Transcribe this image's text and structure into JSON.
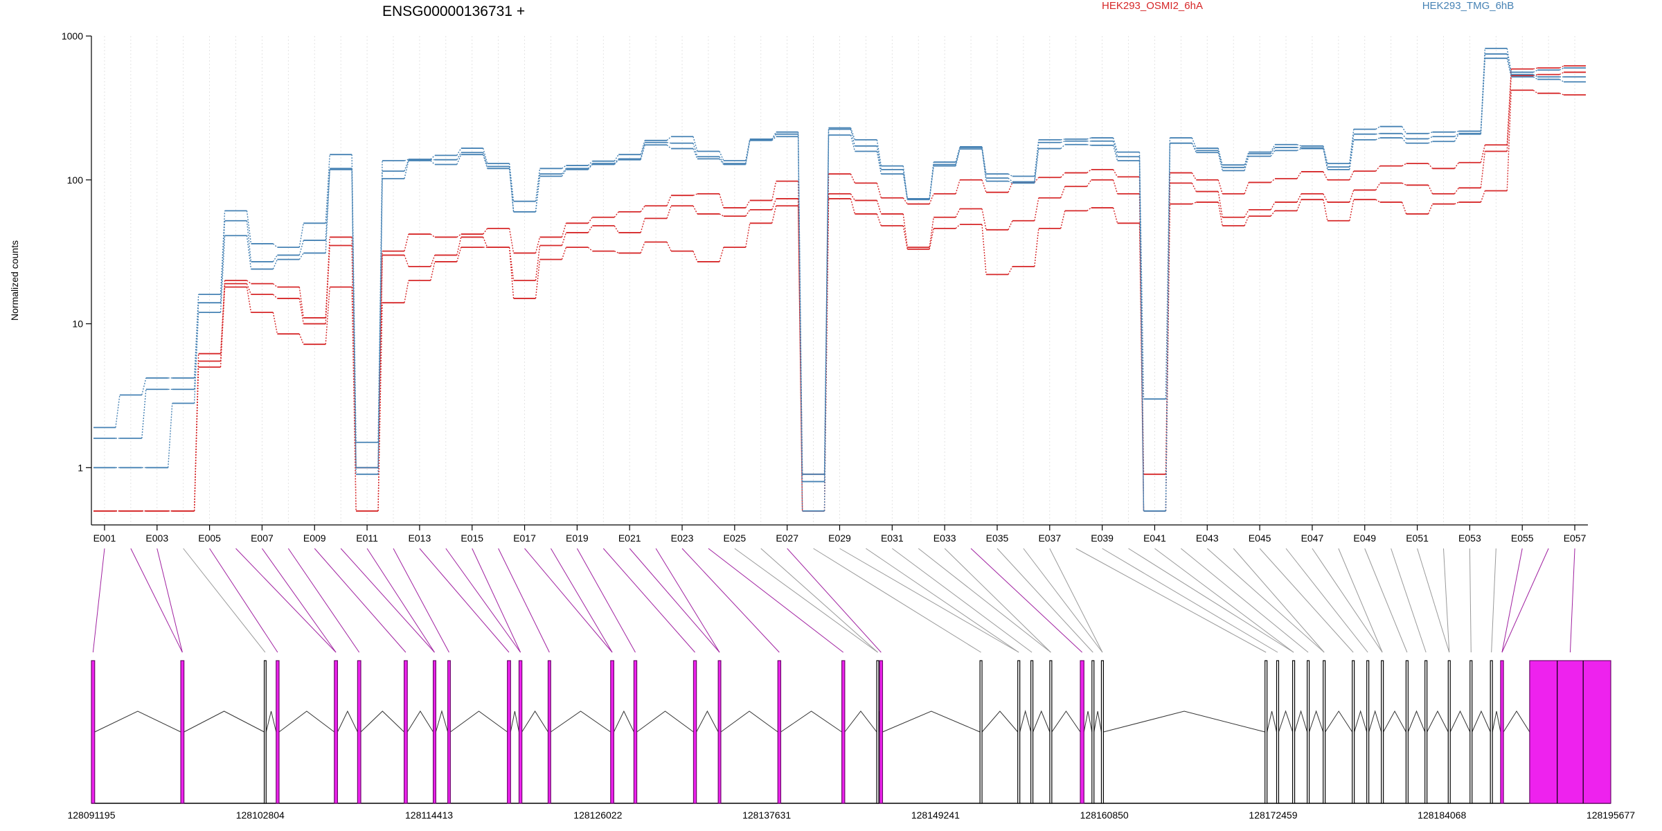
{
  "chart_data": {
    "type": "line",
    "title": "ENSG00000136731 +",
    "ylabel": "Normalized counts",
    "xlabel": "",
    "yscale": "log",
    "ylim": [
      0.4,
      1000
    ],
    "y_ticks": [
      1,
      10,
      100,
      1000
    ],
    "y_tick_labels": [
      "1",
      "10",
      "100",
      "1000"
    ],
    "x_tick_labels": [
      "E001",
      "E003",
      "E005",
      "E007",
      "E009",
      "E011",
      "E013",
      "E015",
      "E017",
      "E019",
      "E021",
      "E023",
      "E025",
      "E027",
      "E029",
      "E031",
      "E033",
      "E035",
      "E037",
      "E039",
      "E041",
      "E043",
      "E045",
      "E047",
      "E049",
      "E051",
      "E053",
      "E055",
      "E057"
    ],
    "exons": [
      "E001",
      "E002",
      "E003",
      "E004",
      "E005",
      "E006",
      "E007",
      "E008",
      "E009",
      "E010",
      "E011",
      "E012",
      "E013",
      "E014",
      "E015",
      "E016",
      "E017",
      "E018",
      "E019",
      "E020",
      "E021",
      "E022",
      "E023",
      "E024",
      "E025",
      "E026",
      "E027",
      "E028",
      "E029",
      "E030",
      "E031",
      "E032",
      "E033",
      "E034",
      "E035",
      "E036",
      "E037",
      "E038",
      "E039",
      "E040",
      "E041",
      "E042",
      "E043",
      "E044",
      "E045",
      "E046",
      "E047",
      "E048",
      "E049",
      "E050",
      "E051",
      "E052",
      "E053",
      "E054",
      "E055",
      "E056",
      "E057"
    ],
    "legend_placement": "top",
    "grid": true,
    "colors": {
      "OSMI2": "#d62728",
      "TMG": "#4682b4",
      "exon_fill": "#ee22ee",
      "structure": "#333333"
    },
    "series": [
      {
        "name": "HEK293_OSMI2_6hA",
        "group": "OSMI2",
        "values": [
          0.5,
          0.5,
          0.5,
          0.5,
          6.2,
          20,
          19,
          18,
          11,
          40,
          1.0,
          32,
          42,
          40,
          42,
          46,
          31,
          40,
          50,
          55,
          60,
          66,
          78,
          80,
          64,
          72,
          98,
          0.9,
          110,
          95,
          75,
          68,
          80,
          100,
          82,
          96,
          104,
          112,
          118,
          105,
          0.9,
          112,
          100,
          80,
          96,
          102,
          114,
          100,
          115,
          125,
          130,
          120,
          132,
          175,
          590,
          600,
          620
        ]
      },
      {
        "name": "HEK293_OSMI2_6hA",
        "group": "OSMI2",
        "values": [
          0.5,
          0.5,
          0.5,
          0.5,
          5.5,
          19,
          16,
          15,
          10,
          35,
          0.5,
          30,
          25,
          30,
          40,
          34,
          20,
          35,
          43,
          48,
          43,
          54,
          66,
          58,
          56,
          62,
          74,
          0.5,
          80,
          72,
          58,
          34,
          55,
          63,
          45,
          52,
          75,
          90,
          100,
          80,
          0.5,
          95,
          83,
          55,
          62,
          70,
          80,
          70,
          85,
          95,
          92,
          80,
          88,
          158,
          530,
          540,
          560
        ]
      },
      {
        "name": "HEK293_OSMI2_6hA",
        "group": "OSMI2",
        "values": [
          0.5,
          0.5,
          0.5,
          0.5,
          5.0,
          18,
          12,
          8.5,
          7.2,
          18,
          0.5,
          14,
          20,
          27,
          34,
          34,
          15,
          28,
          34,
          32,
          31,
          37,
          32,
          27,
          34,
          50,
          66,
          0.5,
          74,
          58,
          48,
          33,
          46,
          49,
          22,
          25,
          46,
          61,
          64,
          50,
          0.5,
          68,
          70,
          48,
          56,
          61,
          73,
          52,
          73,
          70,
          58,
          68,
          70,
          84,
          420,
          400,
          390
        ]
      },
      {
        "name": "HEK293_TMG_6hB",
        "group": "TMG",
        "values": [
          1.9,
          3.2,
          4.2,
          4.2,
          16,
          61,
          36,
          34,
          50,
          150,
          1.5,
          136,
          139,
          148,
          166,
          130,
          71,
          120,
          126,
          135,
          150,
          188,
          200,
          158,
          136,
          192,
          215,
          0.9,
          230,
          190,
          125,
          74,
          133,
          170,
          110,
          106,
          190,
          192,
          196,
          156,
          3.0,
          196,
          166,
          127,
          156,
          176,
          172,
          130,
          225,
          235,
          210,
          215,
          218,
          820,
          560,
          580,
          600
        ]
      },
      {
        "name": "HEK293_TMG_6hB",
        "group": "TMG",
        "values": [
          1.6,
          1.6,
          3.5,
          3.5,
          14,
          52,
          27,
          30,
          38,
          120,
          1.0,
          115,
          138,
          138,
          155,
          124,
          60,
          110,
          120,
          130,
          140,
          182,
          180,
          145,
          130,
          190,
          208,
          0.8,
          225,
          172,
          118,
          74,
          128,
          168,
          103,
          97,
          182,
          186,
          186,
          145,
          0.5,
          180,
          160,
          122,
          152,
          168,
          167,
          123,
          208,
          210,
          193,
          200,
          210,
          750,
          540,
          520,
          520
        ]
      },
      {
        "name": "HEK293_TMG_6hB",
        "group": "TMG",
        "values": [
          1.0,
          1.0,
          1.0,
          2.8,
          12,
          41,
          24,
          28,
          31,
          118,
          0.9,
          102,
          136,
          128,
          150,
          120,
          60,
          106,
          118,
          128,
          138,
          175,
          165,
          140,
          128,
          188,
          200,
          0.5,
          205,
          158,
          110,
          73,
          125,
          164,
          98,
          95,
          165,
          176,
          174,
          136,
          0.5,
          180,
          155,
          116,
          146,
          160,
          165,
          118,
          190,
          196,
          180,
          185,
          208,
          700,
          520,
          500,
          480
        ]
      }
    ],
    "gene_structure": {
      "coord_labels": [
        "128091195",
        "128102804",
        "128114413",
        "128126022",
        "128137631",
        "128149241",
        "128160850",
        "128172459",
        "128184068",
        "128195677"
      ],
      "features": [
        {
          "start": 128091195,
          "end": 128091420,
          "highlighted": true
        },
        {
          "start": 128097340,
          "end": 128097560,
          "highlighted": true
        },
        {
          "start": 128103080,
          "end": 128103210,
          "highlighted": false
        },
        {
          "start": 128103900,
          "end": 128104100,
          "highlighted": true
        },
        {
          "start": 128107900,
          "end": 128108120,
          "highlighted": true
        },
        {
          "start": 128109500,
          "end": 128109720,
          "highlighted": true
        },
        {
          "start": 128112700,
          "end": 128112920,
          "highlighted": true
        },
        {
          "start": 128114700,
          "end": 128114880,
          "highlighted": true
        },
        {
          "start": 128115700,
          "end": 128115880,
          "highlighted": true
        },
        {
          "start": 128119800,
          "end": 128120020,
          "highlighted": true
        },
        {
          "start": 128120600,
          "end": 128120800,
          "highlighted": true
        },
        {
          "start": 128122600,
          "end": 128122780,
          "highlighted": true
        },
        {
          "start": 128126900,
          "end": 128127120,
          "highlighted": true
        },
        {
          "start": 128128500,
          "end": 128128700,
          "highlighted": true
        },
        {
          "start": 128132600,
          "end": 128132800,
          "highlighted": true
        },
        {
          "start": 128134300,
          "end": 128134480,
          "highlighted": true
        },
        {
          "start": 128138400,
          "end": 128138600,
          "highlighted": true
        },
        {
          "start": 128142800,
          "end": 128143000,
          "highlighted": true
        },
        {
          "start": 128145200,
          "end": 128145340,
          "highlighted": false
        },
        {
          "start": 128145400,
          "end": 128145600,
          "highlighted": true
        },
        {
          "start": 128152300,
          "end": 128152440,
          "highlighted": false
        },
        {
          "start": 128154900,
          "end": 128155040,
          "highlighted": false
        },
        {
          "start": 128155800,
          "end": 128155940,
          "highlighted": false
        },
        {
          "start": 128157100,
          "end": 128157240,
          "highlighted": false
        },
        {
          "start": 128159200,
          "end": 128159450,
          "highlighted": true
        },
        {
          "start": 128160000,
          "end": 128160140,
          "highlighted": false
        },
        {
          "start": 128160650,
          "end": 128160790,
          "highlighted": false
        },
        {
          "start": 128171900,
          "end": 128172040,
          "highlighted": false
        },
        {
          "start": 128172700,
          "end": 128172840,
          "highlighted": false
        },
        {
          "start": 128173800,
          "end": 128173940,
          "highlighted": false
        },
        {
          "start": 128174800,
          "end": 128174940,
          "highlighted": false
        },
        {
          "start": 128175900,
          "end": 128176040,
          "highlighted": false
        },
        {
          "start": 128177900,
          "end": 128178040,
          "highlighted": false
        },
        {
          "start": 128178900,
          "end": 128179040,
          "highlighted": false
        },
        {
          "start": 128179900,
          "end": 128180040,
          "highlighted": false
        },
        {
          "start": 128181600,
          "end": 128181740,
          "highlighted": false
        },
        {
          "start": 128182900,
          "end": 128183040,
          "highlighted": false
        },
        {
          "start": 128184500,
          "end": 128184640,
          "highlighted": false
        },
        {
          "start": 128186000,
          "end": 128186140,
          "highlighted": false
        },
        {
          "start": 128187400,
          "end": 128187540,
          "highlighted": false
        },
        {
          "start": 128188100,
          "end": 128188300,
          "highlighted": true
        },
        {
          "start": 128190100,
          "end": 128195677,
          "highlighted": true
        }
      ]
    }
  }
}
